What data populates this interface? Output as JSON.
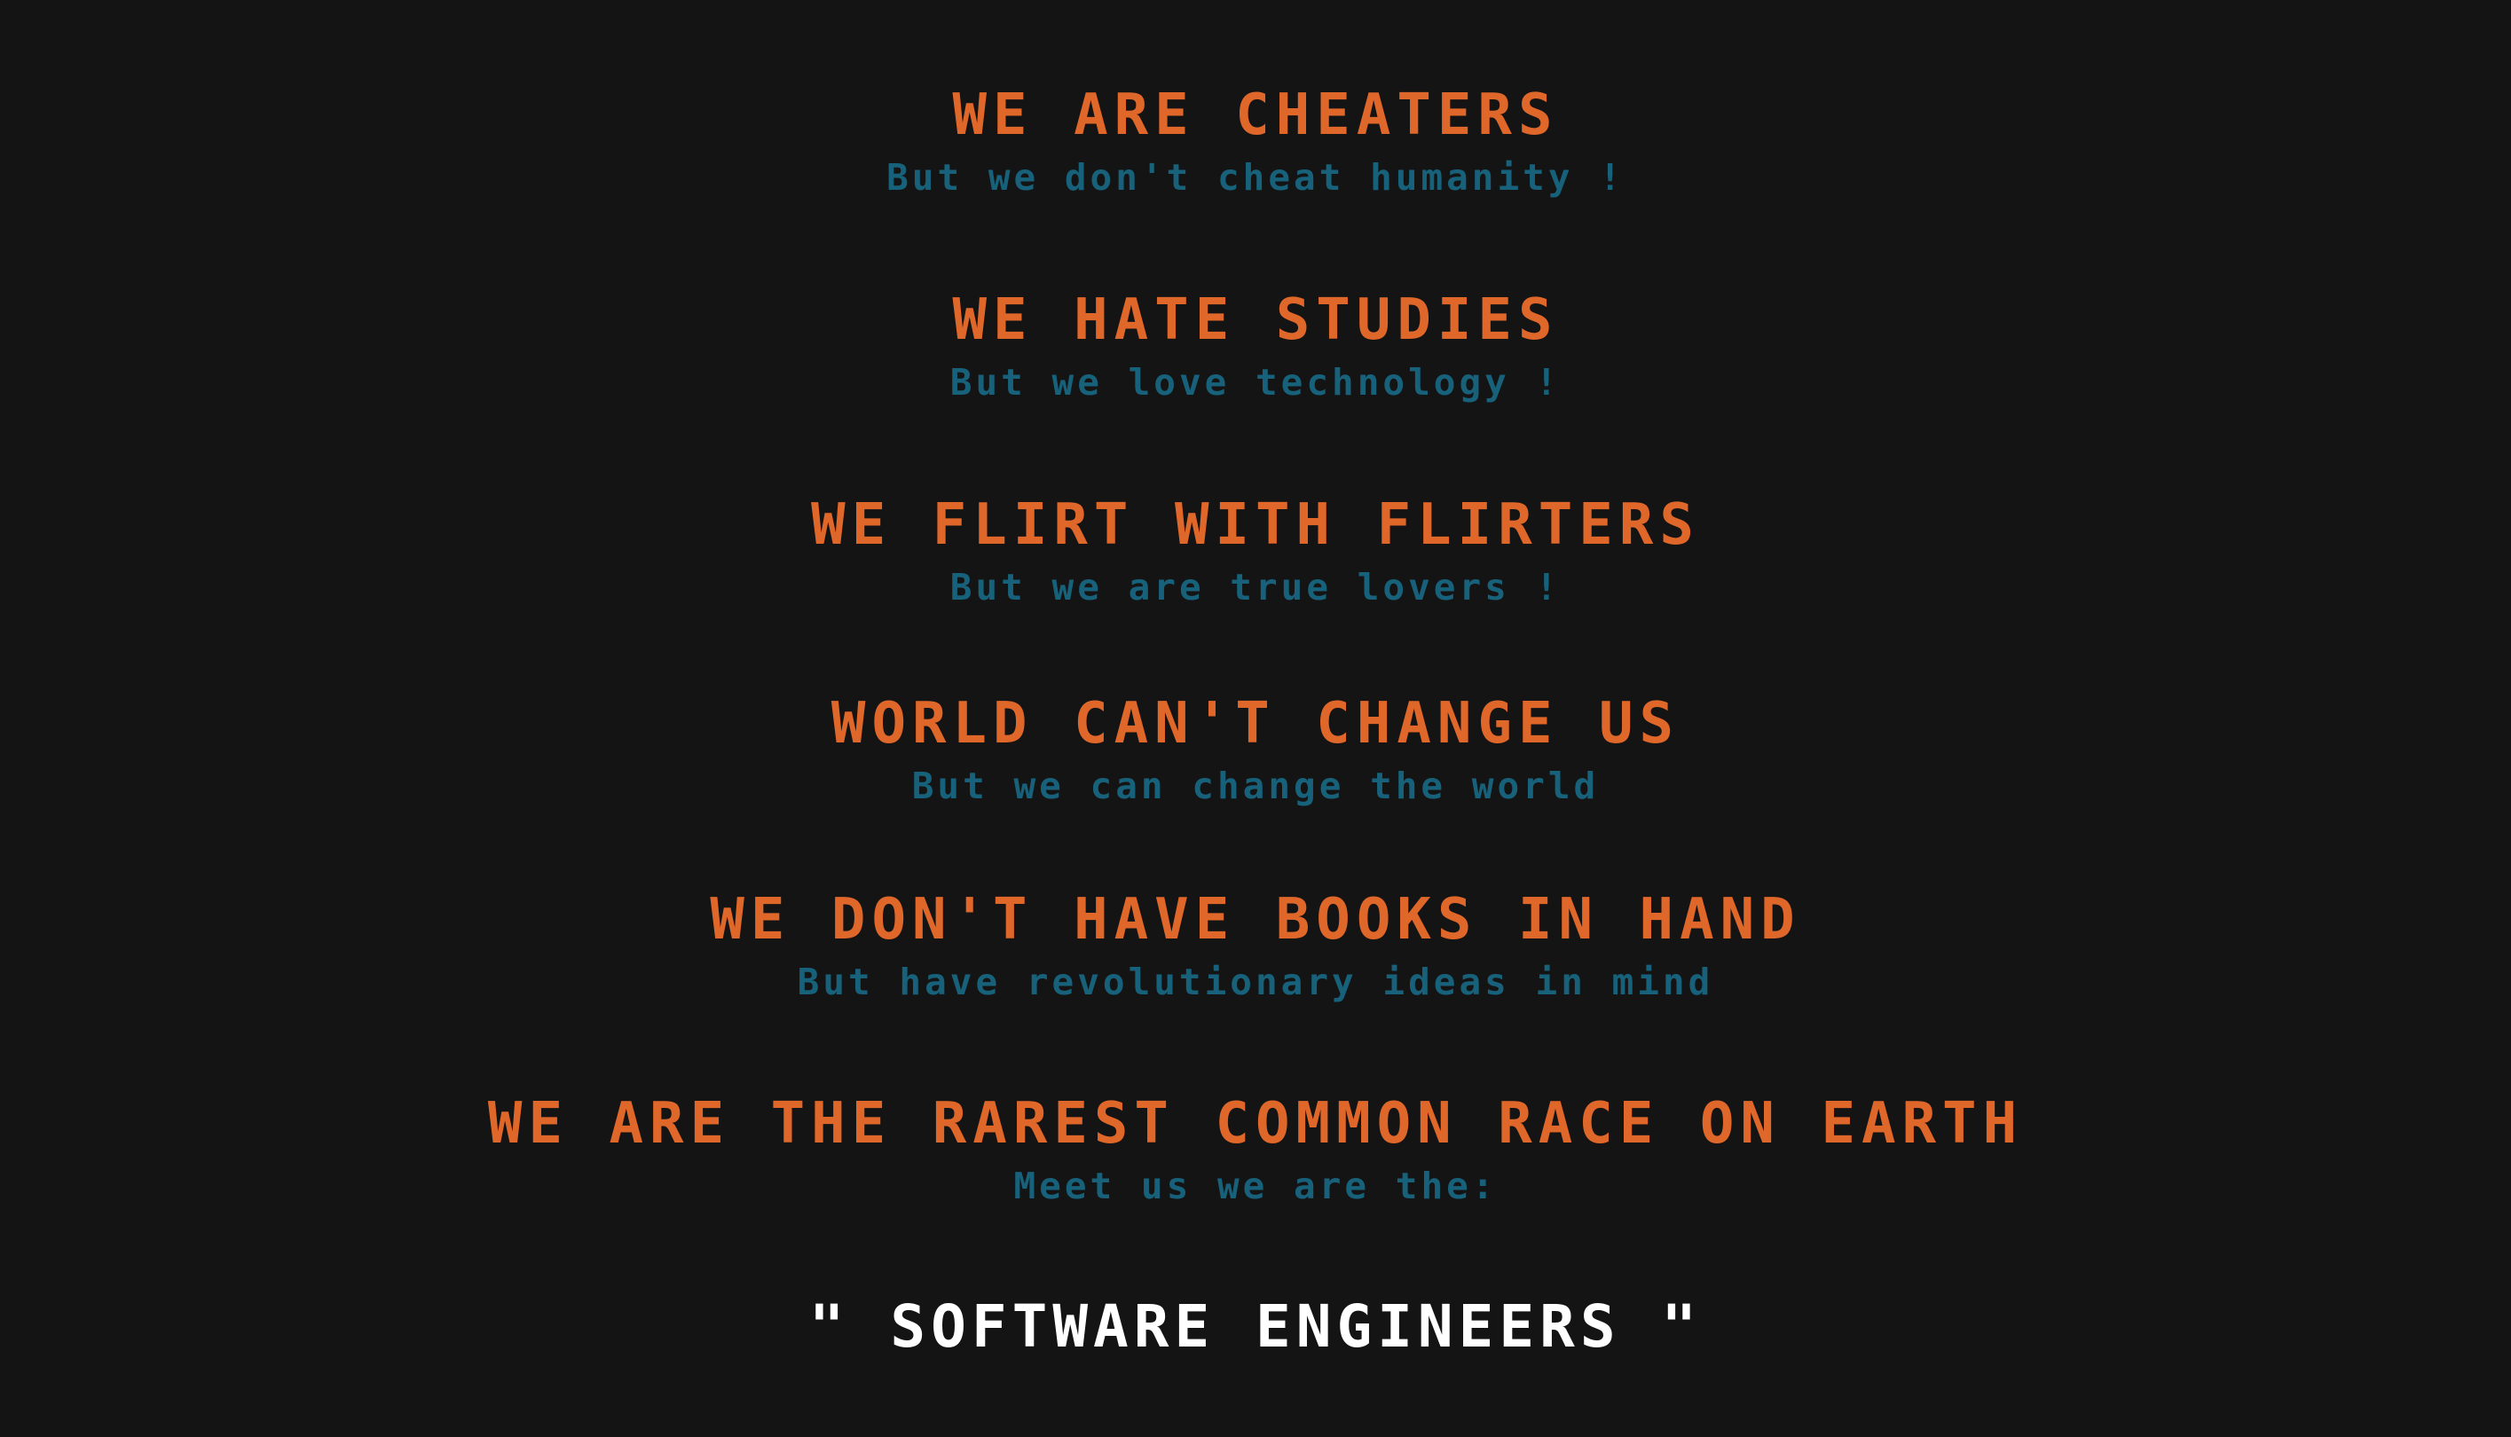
{
  "stanzas": [
    {
      "headline": "WE ARE CHEATERS",
      "subline": "But we don't cheat humanity !"
    },
    {
      "headline": "WE HATE STUDIES",
      "subline": "But we love technology !"
    },
    {
      "headline": "WE FLIRT WITH FLIRTERS",
      "subline": "But we are true lovers !"
    },
    {
      "headline": "WORLD CAN'T CHANGE US",
      "subline": "But we can change the world"
    },
    {
      "headline": "WE DON'T HAVE BOOKS IN HAND",
      "subline": "But have revolutionary ideas in mind"
    },
    {
      "headline": "WE ARE THE RAREST COMMON RACE ON EARTH",
      "subline": "Meet us we are the:"
    }
  ],
  "finale": "\" SOFTWARE ENGINEERS \"",
  "colors": {
    "background": "#141414",
    "headline": "#e0672a",
    "subline": "#17617a",
    "finale": "#ffffff"
  }
}
